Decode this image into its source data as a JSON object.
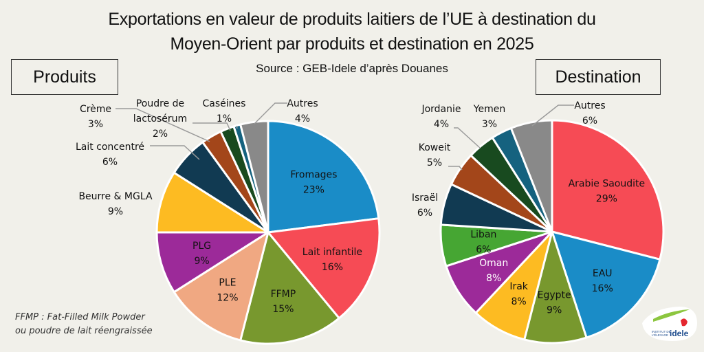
{
  "title_line1": "Exportations en valeur de produits laitiers de l’UE à destination du",
  "title_line2": "Moyen-Orient par produits et destination en 2025",
  "source": "Source : GEB-Idele d’après Douanes",
  "note_line1": "FFMP : Fat-Filled Milk Powder",
  "note_line2": "ou poudre de lait réengraissée",
  "logo": {
    "line1": "INSTITUT DE",
    "line2": "L'ÉLEVAGE",
    "brand": "idele"
  },
  "chart_data": [
    {
      "type": "pie",
      "title": "Produits",
      "start": "12 o'clock, clockwise",
      "unit": "%",
      "slices": [
        {
          "label": "Fromages",
          "value": 23,
          "color": "#1a8cc7",
          "label_pos": "inside"
        },
        {
          "label": "Lait infantile",
          "value": 16,
          "color": "#f64b55",
          "label_pos": "inside"
        },
        {
          "label": "FFMP",
          "value": 15,
          "color": "#78982e",
          "label_pos": "inside"
        },
        {
          "label": "PLE",
          "value": 12,
          "color": "#f0a882",
          "label_pos": "inside"
        },
        {
          "label": "PLG",
          "value": 9,
          "color": "#9c2a99",
          "label_pos": "inside"
        },
        {
          "label": "Beurre & MGLA",
          "value": 9,
          "color": "#fdbb22",
          "label_pos": "outside"
        },
        {
          "label": "Lait concentré",
          "value": 6,
          "color": "#113a52",
          "label_pos": "outside"
        },
        {
          "label": "Crème",
          "value": 3,
          "color": "#a3461a",
          "label_pos": "outside"
        },
        {
          "label": "Poudre de lactosérum",
          "value": 2,
          "color": "#184a1f",
          "label_pos": "outside"
        },
        {
          "label": "Caséines",
          "value": 1,
          "color": "#15627f",
          "label_pos": "outside"
        },
        {
          "label": "Autres",
          "value": 4,
          "color": "#898989",
          "label_pos": "outside"
        }
      ]
    },
    {
      "type": "pie",
      "title": "Destination",
      "start": "12 o'clock, clockwise",
      "unit": "%",
      "slices": [
        {
          "label": "Arabie Saoudite",
          "value": 29,
          "color": "#f64b55",
          "label_pos": "inside"
        },
        {
          "label": "EAU",
          "value": 16,
          "color": "#1a8cc7",
          "label_pos": "inside"
        },
        {
          "label": "Egypte",
          "value": 9,
          "color": "#78982e",
          "label_pos": "inside"
        },
        {
          "label": "Irak",
          "value": 8,
          "color": "#fdbb22",
          "label_pos": "inside"
        },
        {
          "label": "Oman",
          "value": 8,
          "color": "#9c2a99",
          "label_pos": "inside"
        },
        {
          "label": "Liban",
          "value": 6,
          "color": "#46a633",
          "label_pos": "inside"
        },
        {
          "label": "Israël",
          "value": 6,
          "color": "#113a52",
          "label_pos": "outside"
        },
        {
          "label": "Koweit",
          "value": 5,
          "color": "#a3461a",
          "label_pos": "outside"
        },
        {
          "label": "Jordanie",
          "value": 4,
          "color": "#184a1f",
          "label_pos": "outside"
        },
        {
          "label": "Yemen",
          "value": 3,
          "color": "#15627f",
          "label_pos": "outside"
        },
        {
          "label": "Autres",
          "value": 6,
          "color": "#898989",
          "label_pos": "outside"
        }
      ]
    }
  ]
}
